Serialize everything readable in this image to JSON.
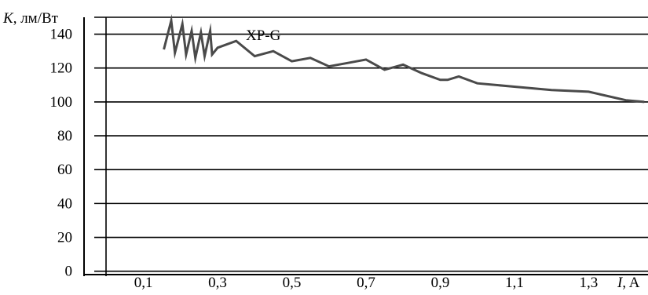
{
  "chart_data": {
    "type": "line",
    "ylabel_var": "K",
    "ylabel_unit": ", лм/Вт",
    "xlabel_var": "I",
    "xlabel_unit": ", A",
    "xlim": [
      -0.06,
      1.46
    ],
    "ylim": [
      -2,
      150
    ],
    "grid": {
      "horizontal": true,
      "vertical": false
    },
    "y_ticks": [
      {
        "value": 0,
        "label": "0"
      },
      {
        "value": 20,
        "label": "20"
      },
      {
        "value": 40,
        "label": "40"
      },
      {
        "value": 60,
        "label": "60"
      },
      {
        "value": 80,
        "label": "80"
      },
      {
        "value": 100,
        "label": "100"
      },
      {
        "value": 120,
        "label": "120"
      },
      {
        "value": 140,
        "label": "140"
      }
    ],
    "x_ticks": [
      {
        "value": 0.1,
        "label": "0,1"
      },
      {
        "value": 0.3,
        "label": "0,3"
      },
      {
        "value": 0.5,
        "label": "0,5"
      },
      {
        "value": 0.7,
        "label": "0,7"
      },
      {
        "value": 0.9,
        "label": "0,9"
      },
      {
        "value": 1.1,
        "label": "1,1"
      },
      {
        "value": 1.3,
        "label": "1,3"
      }
    ],
    "series": [
      {
        "name": "XP-G",
        "color": "#4a4a4a",
        "x": [
          0.155,
          0.175,
          0.185,
          0.205,
          0.215,
          0.23,
          0.24,
          0.255,
          0.265,
          0.28,
          0.285,
          0.3,
          0.35,
          0.4,
          0.45,
          0.5,
          0.55,
          0.6,
          0.65,
          0.7,
          0.75,
          0.8,
          0.85,
          0.9,
          0.92,
          0.95,
          1.0,
          1.1,
          1.2,
          1.3,
          1.4,
          1.45
        ],
        "y": [
          131,
          148,
          129,
          146,
          128,
          142,
          126,
          141,
          127,
          142,
          128,
          132,
          136,
          127,
          130,
          124,
          126,
          121,
          123,
          125,
          119,
          122,
          117,
          113,
          113,
          115,
          111,
          109,
          107,
          106,
          101,
          100
        ]
      }
    ]
  }
}
